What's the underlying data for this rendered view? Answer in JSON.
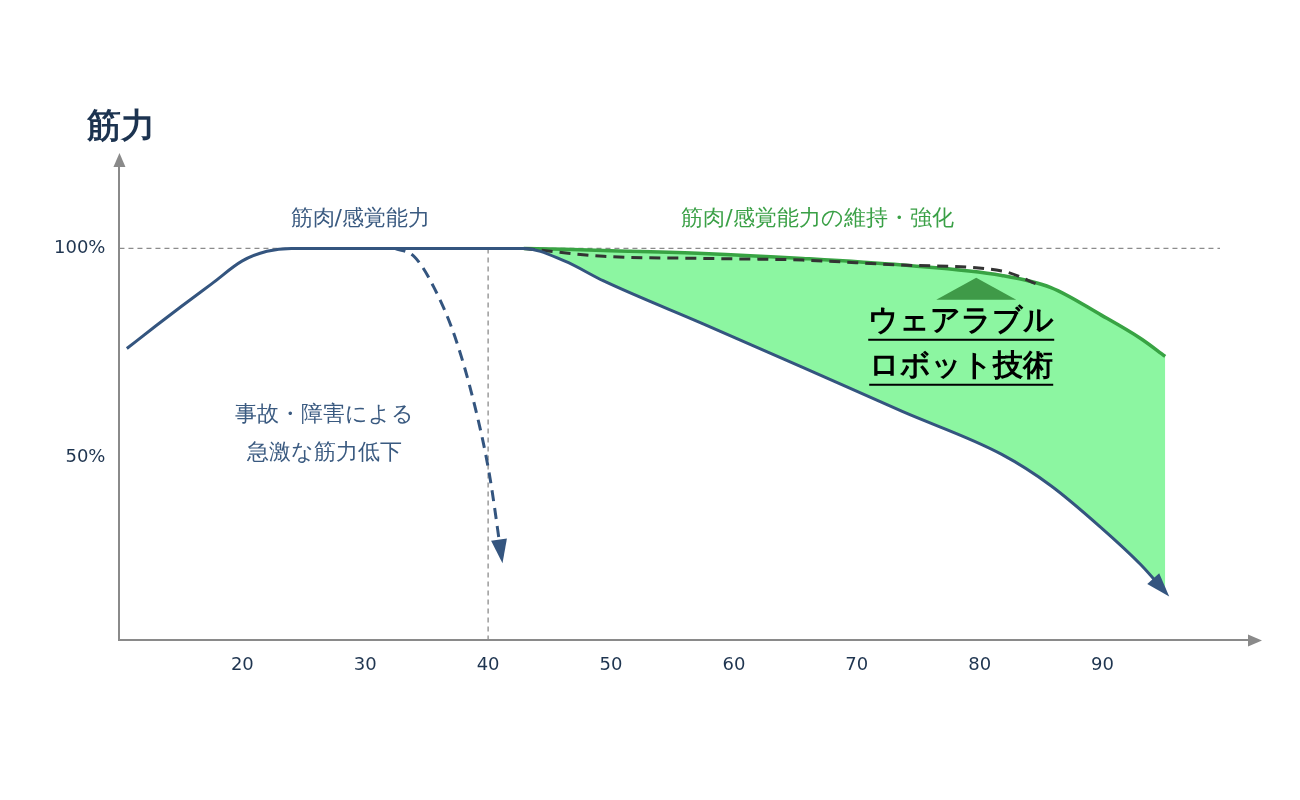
{
  "chart_data": {
    "type": "line",
    "y_label": "筋力",
    "xlim": [
      10,
      102
    ],
    "xticks": [
      20,
      30,
      40,
      50,
      60,
      70,
      80,
      90
    ],
    "ylim": [
      6,
      120
    ],
    "yticks": [
      {
        "value": 50,
        "label": "50%"
      },
      {
        "value": 100,
        "label": "100%"
      }
    ],
    "grid": false,
    "tick_labels": true,
    "series": [
      {
        "type": "area",
        "color": "#38a343",
        "line_style": "solid",
        "x": [
          42.9,
          46.2,
          49.4,
          57.5,
          65.6,
          73.7,
          81.8,
          85.8,
          89.9,
          93.1,
          95.1
        ],
        "values": [
          100,
          99.8,
          99.5,
          98.8,
          97.6,
          96,
          93.5,
          90.6,
          84,
          78.4,
          74.1
        ]
      },
      {
        "type": "line",
        "color": "#34557f",
        "line_style": "solid",
        "marker": "arrow",
        "x": [
          10.6,
          13,
          15,
          17.5,
          20,
          22,
          24,
          30,
          35,
          40,
          42.9,
          46.2,
          49.4,
          57.5,
          65.6,
          73.7,
          81.8,
          85.8,
          89.9,
          93.1,
          95.1
        ],
        "values": [
          76,
          81.5,
          86,
          91.5,
          97,
          99.3,
          100,
          100,
          100,
          100,
          100,
          97,
          92.2,
          81.9,
          71.5,
          60.9,
          50.6,
          43.1,
          33,
          24.2,
          17.6
        ]
      },
      {
        "type": "line",
        "color": "#333333",
        "line_style": "dashed",
        "x": [
          42.9,
          49.4,
          57.5,
          65.6,
          73.7,
          81.8,
          85
        ],
        "values": [
          100,
          98.1,
          97.6,
          97.2,
          96,
          94.6,
          91
        ]
      },
      {
        "type": "line",
        "color": "#34557f",
        "line_style": "dashed",
        "marker": "arrow",
        "x": [
          32.4,
          34,
          35.6,
          37.3,
          38.9,
          40.1,
          41.1
        ],
        "values": [
          100,
          98,
          90.6,
          78.8,
          62.4,
          45.9,
          25.9
        ]
      }
    ],
    "reference_lines": [
      {
        "axis": "y",
        "value": 100
      },
      {
        "axis": "x",
        "value": 40
      }
    ],
    "annotations": [
      {
        "text": [
          "筋肉/感覚能力"
        ],
        "color": "#3a5a80"
      },
      {
        "text": [
          "筋肉/感覚能力の維持・強化"
        ],
        "color": "#3aa046"
      },
      {
        "text": [
          "事故・障害による",
          "急激な筋力低下"
        ],
        "color": "#3a5a80"
      },
      {
        "text": [
          "ウェアラブル",
          "ロボット技術"
        ],
        "color": "#000000"
      }
    ]
  }
}
